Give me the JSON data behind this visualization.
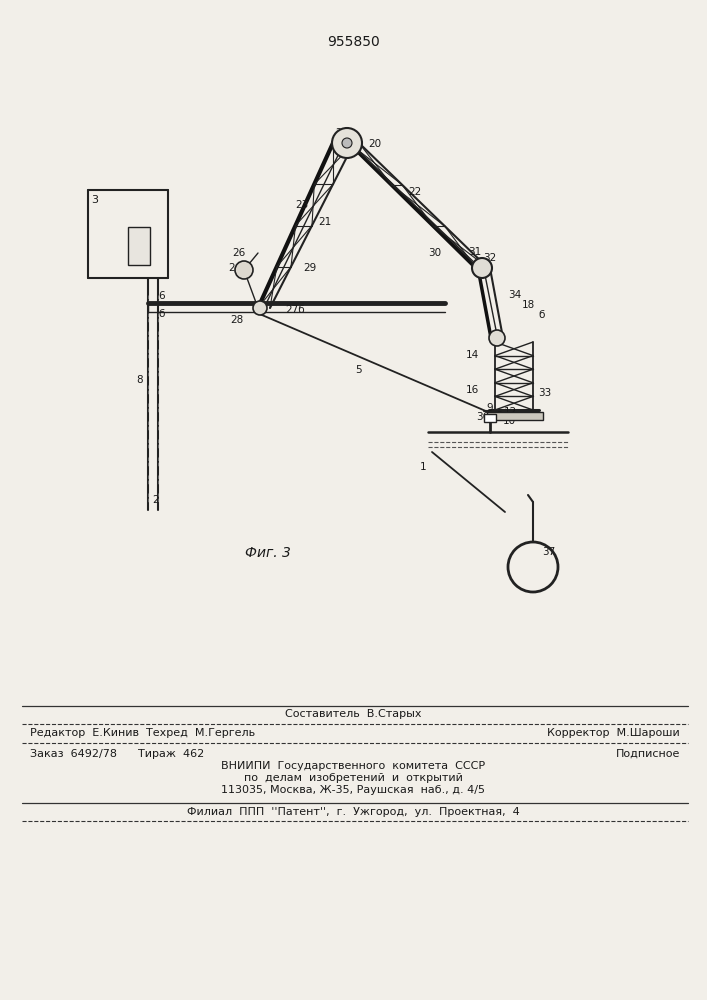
{
  "patent_number": "955850",
  "fig_label": "Фиг. 3",
  "bg_color": "#f2efe9",
  "line_color": "#1a1a1a",
  "draw_color": "#222222",
  "footer": {
    "line1_center": "Составитель  В.Старых",
    "line2_left": "Редактор  Е.Кинив  Техред  М.Гергель",
    "line2_right": "Корректор  М.Шароши",
    "line3_left": "Заказ  6492/78      Тираж  462",
    "line3_right": "Подписное",
    "line4": "ВНИИПИ  Государственного  комитета  СССР",
    "line5": "по  делам  изобретений  и  открытий",
    "line6": "113035, Москва, Ж-35, Раушская  наб., д. 4/5",
    "line7": "Филиал  ППП  ''Патент'',  г.  Ужгород,  ул.  Проектная,  4"
  }
}
